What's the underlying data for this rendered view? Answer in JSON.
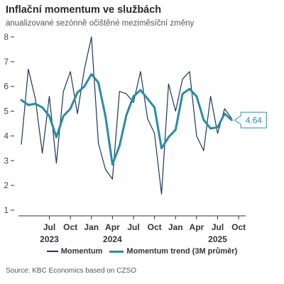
{
  "title": "Inflační momentum ve službách",
  "subtitle": "anualizované sezónně očištěné meziměsíční změny",
  "source": "Source: KBC Economics based on CZSO",
  "colors": {
    "momentum": "#1d3557",
    "trend": "#2b8aa6",
    "axis": "#333333",
    "tick_text": "#444444"
  },
  "chart_data": {
    "type": "line",
    "x": [
      "2023-03",
      "2023-04",
      "2023-05",
      "2023-06",
      "2023-07",
      "2023-08",
      "2023-09",
      "2023-10",
      "2023-11",
      "2023-12",
      "2024-01",
      "2024-02",
      "2024-03",
      "2024-04",
      "2024-05",
      "2024-06",
      "2024-07",
      "2024-08",
      "2024-09",
      "2024-10",
      "2024-11",
      "2024-12",
      "2025-01",
      "2025-02",
      "2025-03",
      "2025-04",
      "2025-05",
      "2025-06",
      "2025-07",
      "2025-08",
      "2025-09",
      "2025-10",
      "2025-11"
    ],
    "series": [
      {
        "name": "Momentum",
        "values": [
          3.65,
          6.7,
          5.5,
          3.3,
          5.6,
          2.9,
          5.8,
          6.6,
          4.9,
          6.7,
          8.0,
          3.7,
          2.65,
          2.25,
          5.8,
          5.7,
          5.35,
          6.6,
          4.7,
          4.1,
          1.65,
          6.1,
          5.0,
          6.3,
          6.6,
          4.0,
          3.4,
          5.6,
          4.1,
          5.1,
          4.7,
          null,
          null
        ]
      },
      {
        "name": "Momentum trend (3M průměr)",
        "values": [
          5.45,
          5.25,
          5.3,
          5.15,
          4.8,
          3.95,
          4.8,
          5.1,
          5.75,
          6.0,
          6.5,
          6.15,
          4.8,
          2.85,
          3.6,
          4.85,
          5.6,
          5.85,
          5.5,
          5.15,
          3.5,
          3.95,
          4.25,
          5.7,
          5.9,
          5.6,
          4.65,
          4.3,
          4.35,
          4.9,
          4.64,
          null,
          null
        ]
      }
    ],
    "ylim": [
      1,
      8
    ],
    "yticks": [
      1,
      2,
      3,
      4,
      5,
      6,
      7,
      8
    ],
    "xticks": [
      {
        "at": "2023-07",
        "label": "Jul",
        "year": "2023"
      },
      {
        "at": "2023-10",
        "label": "Oct",
        "year": ""
      },
      {
        "at": "2024-01",
        "label": "Jan",
        "year": ""
      },
      {
        "at": "2024-04",
        "label": "Apr",
        "year": "2024"
      },
      {
        "at": "2024-07",
        "label": "Jul",
        "year": ""
      },
      {
        "at": "2024-10",
        "label": "Oct",
        "year": ""
      },
      {
        "at": "2025-01",
        "label": "Jan",
        "year": ""
      },
      {
        "at": "2025-04",
        "label": "Apr",
        "year": ""
      },
      {
        "at": "2025-07",
        "label": "Jul",
        "year": "2025"
      },
      {
        "at": "2025-10",
        "label": "Oct",
        "year": ""
      }
    ],
    "last_value_label": "4.64",
    "grid": false,
    "legend_position": "bottom"
  }
}
